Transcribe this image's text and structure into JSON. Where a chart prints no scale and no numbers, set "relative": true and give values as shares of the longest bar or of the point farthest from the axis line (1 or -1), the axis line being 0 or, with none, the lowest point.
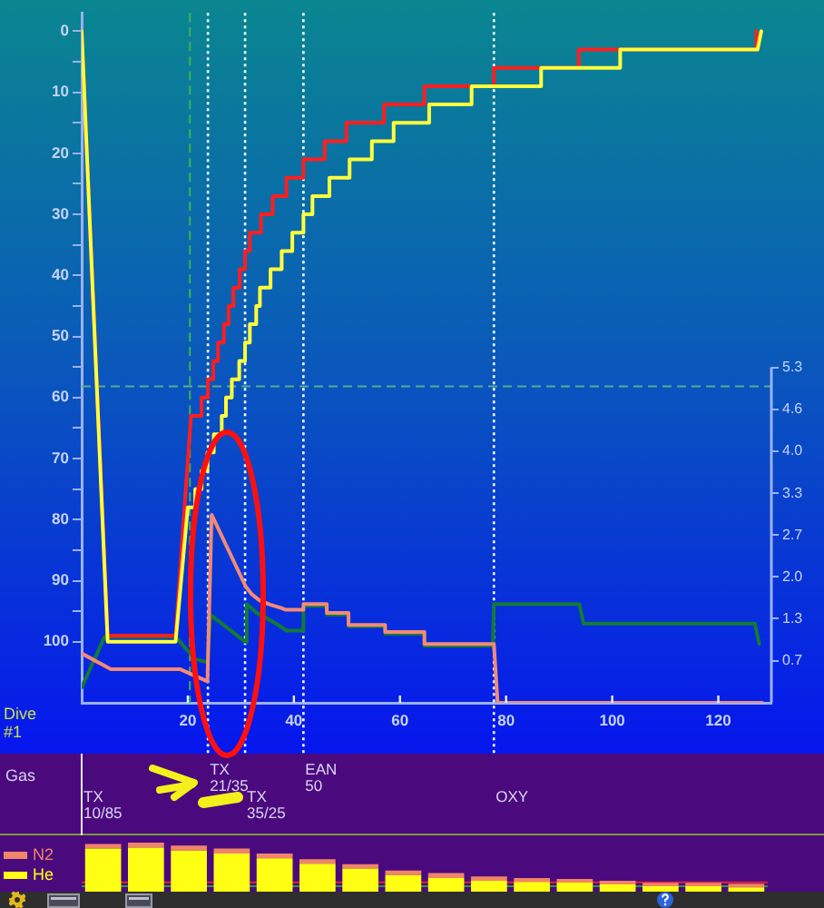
{
  "chart_data": [
    {
      "type": "line",
      "xlim": [
        0,
        130
      ],
      "xticks": [
        20,
        40,
        60,
        80,
        100,
        120
      ],
      "ylim": [
        110,
        -3
      ],
      "yticks": [
        0,
        {
          "value": 5,
          "label": null
        },
        10,
        {
          "value": 15,
          "label": null
        },
        20,
        {
          "value": 25,
          "label": null
        },
        30,
        {
          "value": 35,
          "label": null
        },
        40,
        {
          "value": 45,
          "label": null
        },
        50,
        {
          "value": 55,
          "label": null
        },
        60,
        {
          "value": 65,
          "label": null
        },
        70,
        {
          "value": 75,
          "label": null
        },
        80,
        {
          "value": 85,
          "label": null
        },
        90,
        {
          "value": 95,
          "label": null
        },
        100
      ],
      "y2lim": [
        0,
        10.9
      ],
      "y2ticks": [
        {
          "value": 0.66,
          "label": "0.7"
        },
        {
          "value": 1.33,
          "label": "1.3"
        },
        {
          "value": 1.99,
          "label": "2.0"
        },
        {
          "value": 2.65,
          "label": "2.7"
        },
        {
          "value": 3.31,
          "label": "3.3"
        },
        {
          "value": 3.98,
          "label": "4.0"
        },
        {
          "value": 4.64,
          "label": "4.6"
        },
        {
          "value": 5.3,
          "label": "5.3"
        }
      ],
      "series": [
        {
          "color": "#ffff3c",
          "x": [
            0,
            4.9,
            17.7,
            20.0,
            21.4,
            21.4,
            22.6,
            22.6,
            23.7,
            23.7,
            24.9,
            24.9,
            26.4,
            26.4,
            27.2,
            27.2,
            28.3,
            28.3,
            29.7,
            29.7,
            30.8,
            30.8,
            31.7,
            31.7,
            32.9,
            32.9,
            33.6,
            33.6,
            35.6,
            35.6,
            37.7,
            37.7,
            39.7,
            39.7,
            41.8,
            41.8,
            43.5,
            43.5,
            46.7,
            46.7,
            50.5,
            50.5,
            54.7,
            54.7,
            58.8,
            58.8,
            65.5,
            65.5,
            73.5,
            73.5,
            86.6,
            86.6,
            101.5,
            101.5,
            127.4,
            128.1
          ],
          "values": [
            0,
            100,
            100,
            78,
            78,
            75,
            75,
            72,
            72,
            69,
            69,
            66,
            66,
            63,
            63,
            60,
            60,
            57,
            57,
            54,
            54,
            51,
            51,
            48,
            48,
            45,
            45,
            42,
            42,
            39,
            39,
            36,
            36,
            33,
            33,
            30,
            30,
            27,
            27,
            24,
            24,
            21,
            21,
            18,
            18,
            15,
            15,
            12,
            12,
            9,
            9,
            6,
            6,
            3,
            3,
            0
          ]
        },
        {
          "color": "#ff1e1e",
          "x": [
            0,
            4.9,
            17.7,
            20.6,
            22.6,
            22.6,
            23.8,
            23.8,
            24.8,
            24.8,
            25.7,
            25.7,
            26.8,
            26.8,
            27.7,
            27.7,
            28.6,
            28.6,
            29.8,
            29.8,
            30.8,
            30.8,
            31.7,
            31.7,
            33.8,
            33.8,
            36.0,
            36.0,
            38.6,
            38.6,
            41.8,
            41.8,
            45.8,
            45.8,
            49.9,
            49.9,
            57.0,
            57.0,
            64.6,
            64.6,
            77.7,
            77.7,
            93.7,
            93.7,
            127.2,
            127.2
          ],
          "values": [
            0,
            99,
            99,
            63,
            63,
            60,
            60,
            57,
            57,
            54,
            54,
            51,
            51,
            48,
            48,
            45,
            45,
            42,
            42,
            39,
            39,
            36,
            36,
            33,
            33,
            30,
            30,
            27,
            27,
            24,
            24,
            21,
            21,
            18,
            18,
            15,
            15,
            12,
            12,
            9,
            9,
            6,
            6,
            3,
            3,
            0
          ]
        },
        {
          "axis": "y2",
          "color": "#f28a78",
          "x": [
            0,
            5.5,
            18.6,
            23.7,
            24.5,
            30.9,
            32.0,
            33.5,
            35.5,
            37.5,
            38.5,
            41.8,
            41.8,
            46.2,
            46.2,
            50.3,
            50.3,
            57.2,
            57.2,
            64.6,
            64.6,
            77.7,
            78.4,
            128.3
          ],
          "values": [
            0.78,
            0.53,
            0.53,
            0.34,
            2.97,
            1.84,
            1.72,
            1.62,
            1.55,
            1.5,
            1.47,
            1.47,
            1.56,
            1.56,
            1.42,
            1.42,
            1.23,
            1.23,
            1.12,
            1.12,
            0.93,
            0.93,
            0,
            0
          ]
        },
        {
          "axis": "y2",
          "color": "#137a36",
          "x": [
            0,
            4.3,
            17.7,
            21.4,
            23.7,
            24.3,
            30.9,
            31.1,
            33.0,
            35.0,
            37.0,
            38.6,
            41.8,
            41.8,
            46.2,
            46.2,
            50.3,
            50.3,
            57.2,
            57.2,
            64.6,
            64.6,
            77.5,
            77.7,
            93.8,
            94.6,
            126.9,
            127.7
          ],
          "values": [
            0.24,
            1.04,
            1.04,
            0.69,
            0.64,
            1.39,
            0.96,
            1.56,
            1.42,
            1.33,
            1.23,
            1.14,
            1.14,
            1.53,
            1.53,
            1.39,
            1.39,
            1.21,
            1.21,
            1.09,
            1.09,
            0.9,
            0.9,
            1.56,
            1.56,
            1.25,
            1.25,
            0.93
          ]
        }
      ],
      "ref_lines": [
        {
          "axis": "x",
          "value": 20.4,
          "color": "#3cb450",
          "line_style": "dashed"
        },
        {
          "axis": "y2",
          "value": 5.0,
          "color": "#5aac8c",
          "line_style": "dashed"
        },
        {
          "axis": "x",
          "value": 23.8,
          "color": "#ffffff",
          "line_style": "dotted",
          "label": "TX 21/35"
        },
        {
          "axis": "x",
          "value": 30.8,
          "color": "#ffffff",
          "line_style": "dotted",
          "label": "TX 35/25"
        },
        {
          "axis": "x",
          "value": 41.8,
          "color": "#ffffff",
          "line_style": "dotted",
          "label": "EAN 50"
        },
        {
          "axis": "x",
          "value": 77.7,
          "color": "#ffffff",
          "line_style": "dotted",
          "label": "OXY"
        }
      ],
      "annotations": [
        "Dive #1",
        "Gas",
        "TX 10/85"
      ]
    },
    {
      "type": "bar",
      "stacked": true,
      "relative": true,
      "legend": "left",
      "categories": [
        null,
        null,
        null,
        null,
        null,
        null,
        null,
        null,
        null,
        null,
        null,
        null,
        null,
        null,
        null,
        null
      ],
      "series": [
        {
          "name": "He",
          "color": "#ffff14",
          "values": [
            0.88,
            0.9,
            0.84,
            0.78,
            0.68,
            0.57,
            0.47,
            0.34,
            0.28,
            0.22,
            0.2,
            0.19,
            0.15,
            0.11,
            0.11,
            0.09
          ]
        },
        {
          "name": "N2",
          "color": "#f0846a",
          "values": [
            0.09,
            0.1,
            0.1,
            0.1,
            0.1,
            0.09,
            0.09,
            0.09,
            0.1,
            0.09,
            0.08,
            0.07,
            0.07,
            0.07,
            0.07,
            0.07
          ]
        }
      ],
      "ref_lines": [
        {
          "axis": "y",
          "value": 0.19,
          "color": "#e0203c"
        },
        {
          "axis": "y",
          "value": 0.11,
          "color": "#2a9a3a"
        }
      ]
    }
  ]
}
